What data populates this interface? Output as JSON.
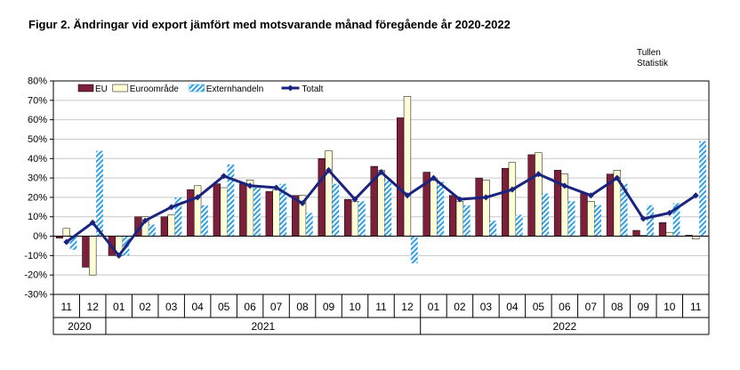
{
  "figure": {
    "title": "Figur 2. Ändringar vid export jämfört med motsvarande månad föregående år 2020-2022",
    "source_line1": "Tullen",
    "source_line2": "Statistik"
  },
  "chart_data": {
    "type": "bar",
    "title": "Figur 2. Ändringar vid export jämfört med motsvarande månad föregående år 2020-2022",
    "xlabel": "",
    "ylabel": "",
    "ylim": [
      -30,
      80
    ],
    "y_ticks": [
      -30,
      -20,
      -10,
      0,
      10,
      20,
      30,
      40,
      50,
      60,
      70,
      80
    ],
    "y_tick_labels": [
      "-30%",
      "-20%",
      "-10%",
      "0%",
      "10%",
      "20%",
      "30%",
      "40%",
      "50%",
      "60%",
      "70%",
      "80%"
    ],
    "grid": true,
    "legend_position": "top-left",
    "categories": [
      "11",
      "12",
      "01",
      "02",
      "03",
      "04",
      "05",
      "06",
      "07",
      "08",
      "09",
      "10",
      "11",
      "12",
      "01",
      "02",
      "03",
      "04",
      "05",
      "06",
      "07",
      "08",
      "09",
      "10",
      "11"
    ],
    "year_groups": [
      {
        "label": "2020",
        "count": 2
      },
      {
        "label": "2021",
        "count": 12
      },
      {
        "label": "2022",
        "count": 11
      }
    ],
    "series": [
      {
        "name": "EU",
        "type": "bar",
        "color": "#7b1f3a",
        "values": [
          -1,
          -16,
          -10,
          10,
          10,
          24,
          27,
          27,
          23,
          21,
          40,
          19,
          36,
          61,
          33,
          21,
          30,
          35,
          42,
          34,
          22,
          32,
          3,
          7,
          0.5
        ]
      },
      {
        "name": "Euroområde",
        "type": "bar",
        "color": "#fffdd6",
        "values": [
          4,
          -20,
          -10,
          10,
          11,
          26,
          25,
          29,
          24,
          21,
          44,
          18,
          34,
          72,
          30,
          18,
          29,
          38,
          43,
          32,
          18,
          34,
          0.5,
          2,
          -1.5
        ]
      },
      {
        "name": "Externhandeln",
        "type": "bar",
        "color": "#2ea0e6",
        "pattern": "diagonal-stripes",
        "values": [
          -7,
          44,
          -10,
          6,
          20,
          16,
          37,
          25,
          27,
          12,
          27,
          18,
          29,
          -14,
          28,
          16,
          8,
          11,
          22,
          18,
          16,
          27,
          16,
          17,
          49
        ]
      },
      {
        "name": "Totalt",
        "type": "line",
        "color": "#1a237e",
        "values": [
          -3,
          7,
          -10,
          8,
          15,
          20,
          31,
          26,
          25,
          17,
          34,
          19,
          33,
          21,
          30,
          19,
          20,
          24,
          32,
          26,
          21,
          30,
          9,
          12,
          21
        ]
      }
    ]
  }
}
